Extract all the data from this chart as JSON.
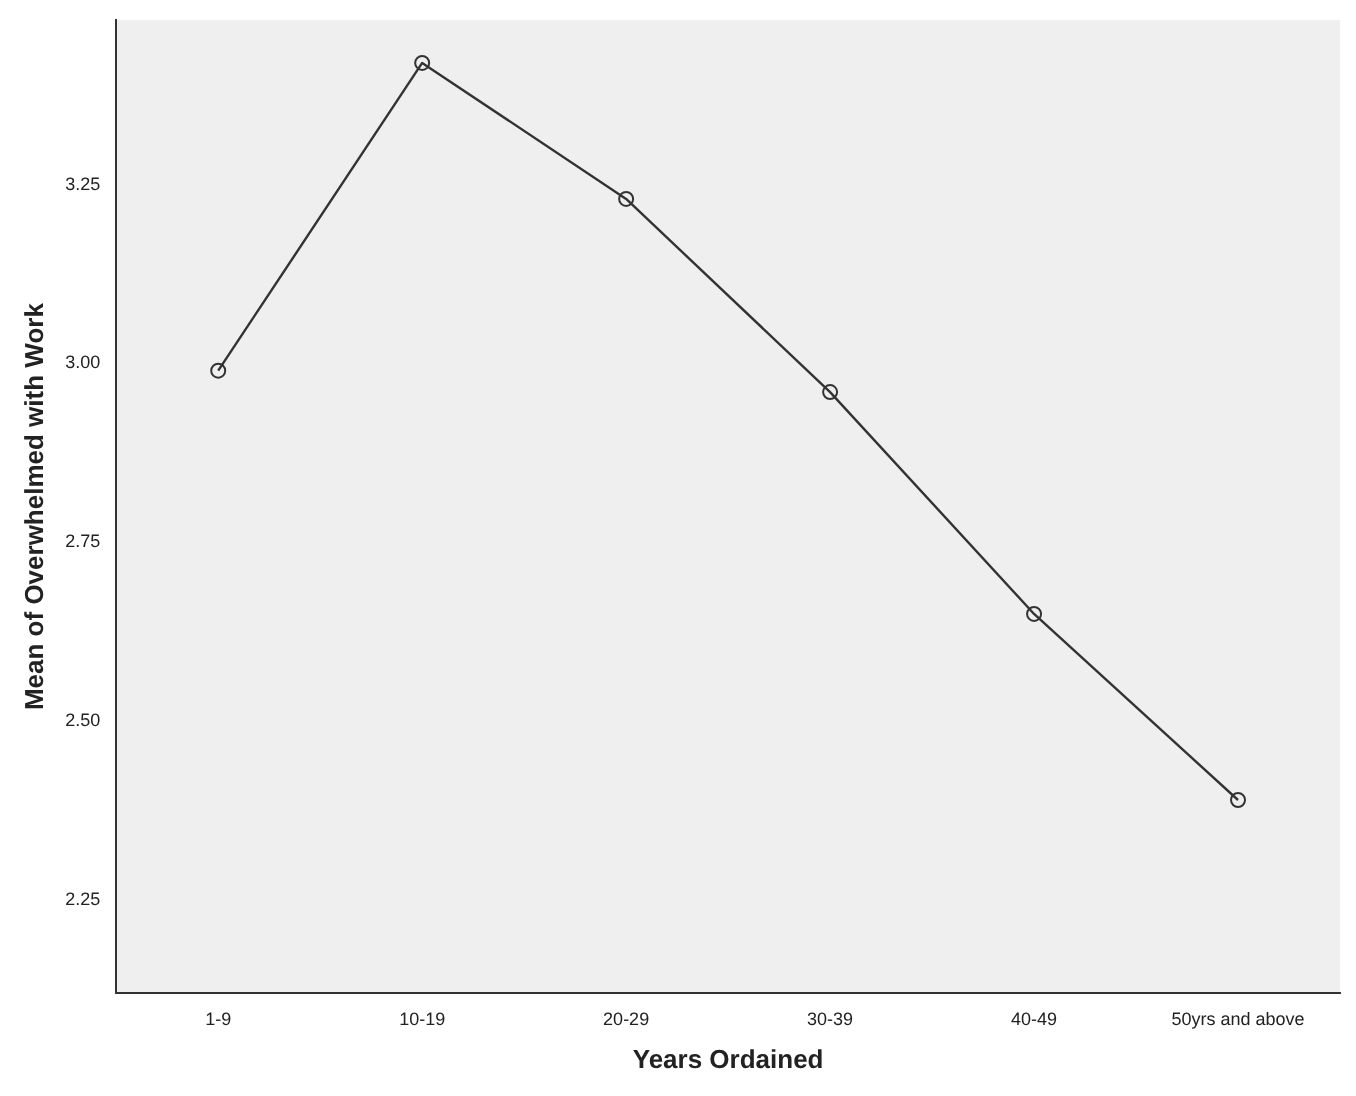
{
  "chart_data": {
    "type": "line",
    "xlabel": "Years Ordained",
    "ylabel": "Mean of Overwhelmed with Work",
    "categories": [
      "1-9",
      "10-19",
      "20-29",
      "30-39",
      "40-49",
      "50yrs and above"
    ],
    "values": [
      2.99,
      3.42,
      3.23,
      2.96,
      2.65,
      2.39
    ],
    "color": "#333333",
    "marker": "circle",
    "line_style": "solid",
    "ylim": [
      2.12,
      3.48
    ],
    "yticks": [
      {
        "value": 2.25,
        "label": "2.25"
      },
      {
        "value": 2.5,
        "label": "2.50"
      },
      {
        "value": 2.75,
        "label": "2.75"
      },
      {
        "value": 3,
        "label": "3.00"
      },
      {
        "value": 3.25,
        "label": "3.25"
      }
    ],
    "grid": false,
    "legend": false
  }
}
